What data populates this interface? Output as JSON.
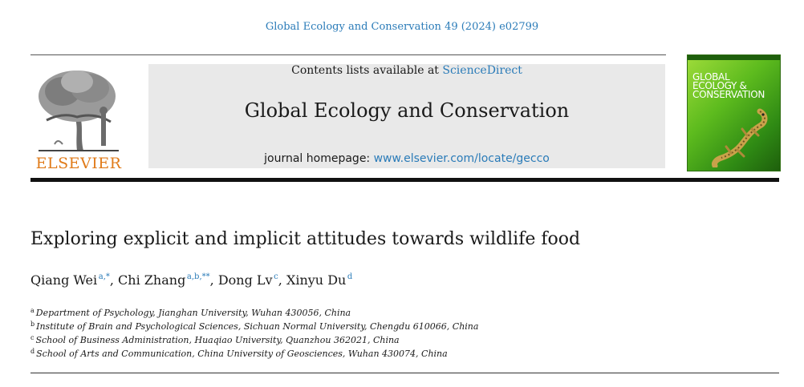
{
  "citation": "Global Ecology and Conservation 49 (2024) e02799",
  "publisher": {
    "name": "ELSEVIER"
  },
  "masthead": {
    "contents_prefix": "Contents lists available at ",
    "contents_link": "ScienceDirect",
    "journal_title": "Global Ecology and Conservation",
    "homepage_prefix": "journal homepage: ",
    "homepage_url": "www.elsevier.com/locate/gecco"
  },
  "cover": {
    "line1": "Global",
    "line2": "Ecology &",
    "line3": "Conservation"
  },
  "article": {
    "title": "Exploring explicit and implicit attitudes towards wildlife food",
    "authors": [
      {
        "name": "Qiang Wei",
        "sup": "a,*",
        "sep": ", "
      },
      {
        "name": "Chi Zhang",
        "sup": "a,b,**",
        "sep": ", "
      },
      {
        "name": "Dong Lv",
        "sup": "c",
        "sep": ", "
      },
      {
        "name": "Xinyu Du",
        "sup": "d",
        "sep": ""
      }
    ],
    "affiliations": [
      {
        "key": "a",
        "text": "Department of Psychology, Jianghan University, Wuhan 430056, China"
      },
      {
        "key": "b",
        "text": "Institute of Brain and Psychological Sciences, Sichuan Normal University, Chengdu 610066, China"
      },
      {
        "key": "c",
        "text": "School of Business Administration, Huaqiao University, Quanzhou 362021, China"
      },
      {
        "key": "d",
        "text": "School of Arts and Communication, China University of Geosciences, Wuhan 430074, China"
      }
    ]
  },
  "colors": {
    "link": "#2a7bb8",
    "publisher": "#e07b1a",
    "masthead_bg": "#e9e9e9",
    "cover_green": "#5dbb1e"
  },
  "icons": {
    "publisher_logo": "elsevier-tree-icon",
    "cover_art": "gecko-icon"
  }
}
